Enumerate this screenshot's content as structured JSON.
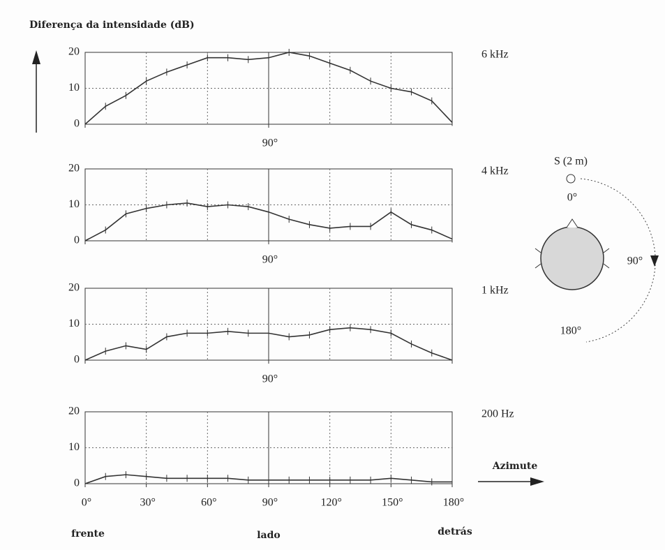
{
  "title": "Diferença da intensidade (dB)",
  "azimuth_label": "Azimute",
  "position_labels": [
    "frente",
    "lado",
    "detrás"
  ],
  "diagram": {
    "source": "S (2 m)",
    "angles": [
      "0°",
      "90°",
      "180°"
    ]
  },
  "chart_data": [
    {
      "type": "line",
      "title": "6 kHz",
      "x": [
        0,
        10,
        20,
        30,
        40,
        50,
        60,
        70,
        80,
        90,
        100,
        110,
        120,
        130,
        140,
        150,
        160,
        170,
        180
      ],
      "values": [
        0,
        5,
        8,
        12,
        14.5,
        16.5,
        18.5,
        18.5,
        18,
        18.5,
        20,
        19,
        17,
        15,
        12,
        10,
        9,
        6.5,
        0.5
      ],
      "xlim": [
        0,
        180
      ],
      "ylim": [
        0,
        20
      ],
      "yticks": [
        0,
        10,
        20
      ],
      "xgrid": [
        30,
        60,
        90,
        120,
        150
      ],
      "xticks": [
        {
          "value": 90,
          "label": "90°"
        }
      ],
      "grid": true,
      "color": "#333333"
    },
    {
      "type": "line",
      "title": "4 kHz",
      "x": [
        0,
        10,
        20,
        30,
        40,
        50,
        60,
        70,
        80,
        90,
        100,
        110,
        120,
        130,
        140,
        150,
        160,
        170,
        180
      ],
      "values": [
        0,
        3,
        7.5,
        9,
        10,
        10.5,
        9.5,
        10,
        9.5,
        8,
        6,
        4.5,
        3.5,
        4,
        4,
        8,
        4.5,
        3,
        0.5
      ],
      "xlim": [
        0,
        180
      ],
      "ylim": [
        0,
        20
      ],
      "yticks": [
        0,
        10,
        20
      ],
      "xgrid": [
        30,
        60,
        90,
        120,
        150
      ],
      "xticks": [
        {
          "value": 90,
          "label": "90°"
        }
      ],
      "grid": true,
      "color": "#333333"
    },
    {
      "type": "line",
      "title": "1 kHz",
      "x": [
        0,
        10,
        20,
        30,
        40,
        50,
        60,
        70,
        80,
        90,
        100,
        110,
        120,
        130,
        140,
        150,
        160,
        170,
        180
      ],
      "values": [
        0,
        2.5,
        4,
        3,
        6.5,
        7.5,
        7.5,
        8,
        7.5,
        7.5,
        6.5,
        7,
        8.5,
        9,
        8.5,
        7.5,
        4.5,
        2,
        0
      ],
      "xlim": [
        0,
        180
      ],
      "ylim": [
        0,
        20
      ],
      "yticks": [
        0,
        10,
        20
      ],
      "xgrid": [
        30,
        60,
        90,
        120,
        150
      ],
      "xticks": [
        {
          "value": 90,
          "label": "90°"
        }
      ],
      "grid": true,
      "color": "#333333"
    },
    {
      "type": "line",
      "title": "200 Hz",
      "x": [
        0,
        10,
        20,
        30,
        40,
        50,
        60,
        70,
        80,
        90,
        100,
        110,
        120,
        130,
        140,
        150,
        160,
        170,
        180
      ],
      "values": [
        0,
        2,
        2.5,
        2,
        1.5,
        1.5,
        1.5,
        1.5,
        1,
        1,
        1,
        1,
        1,
        1,
        1,
        1.5,
        1,
        0.5,
        0.5
      ],
      "xlim": [
        0,
        180
      ],
      "ylim": [
        0,
        20
      ],
      "yticks": [
        0,
        10,
        20
      ],
      "xgrid": [
        30,
        60,
        90,
        120,
        150
      ],
      "xticks": [
        {
          "value": 0,
          "label": "0°"
        },
        {
          "value": 30,
          "label": "30°"
        },
        {
          "value": 60,
          "label": "60°"
        },
        {
          "value": 90,
          "label": "90°"
        },
        {
          "value": 120,
          "label": "120°"
        },
        {
          "value": 150,
          "label": "150°"
        },
        {
          "value": 180,
          "label": "180°"
        }
      ],
      "grid": true,
      "color": "#333333"
    }
  ]
}
